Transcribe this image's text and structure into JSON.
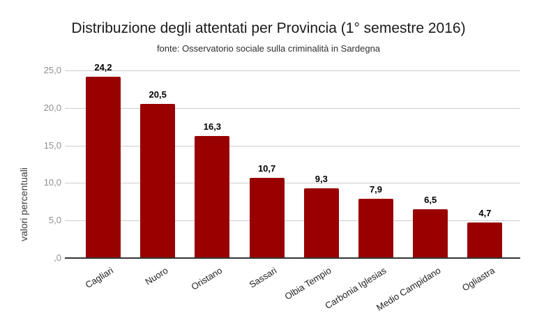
{
  "chart_data": {
    "type": "bar",
    "title": "Distribuzione degli attentati per Provincia (1° semestre 2016)",
    "subtitle": "fonte: Osservatorio sociale sulla criminalità in Sardegna",
    "xlabel": "",
    "ylabel": "valori percentuali",
    "categories": [
      "Cagliari",
      "Nuoro",
      "Oristano",
      "Sassari",
      "Olbia Tempio",
      "Carbonia Iglesias",
      "Medio Campidano",
      "Ogliastra"
    ],
    "values": [
      24.2,
      20.5,
      16.3,
      10.7,
      9.3,
      7.9,
      6.5,
      4.7
    ],
    "value_labels": [
      "24,2",
      "20,5",
      "16,3",
      "10,7",
      "9,3",
      "7,9",
      "6,5",
      "4,7"
    ],
    "ylim": [
      0,
      25
    ],
    "y_ticks": [
      {
        "value": 0,
        "label": ",0"
      },
      {
        "value": 5,
        "label": "5,0"
      },
      {
        "value": 10,
        "label": "10,0"
      },
      {
        "value": 15,
        "label": "15,0"
      },
      {
        "value": 20,
        "label": "20,0"
      },
      {
        "value": 25,
        "label": "25,0"
      }
    ],
    "grid": true,
    "legend": "none",
    "bar_color": "#990000",
    "axis_line_color": "#333333",
    "gridline_color": "#cccccc",
    "y_tick_label_color": "#8e8e8e",
    "category_label_color": "#1f1f1f",
    "background_color": "#ffffff"
  }
}
